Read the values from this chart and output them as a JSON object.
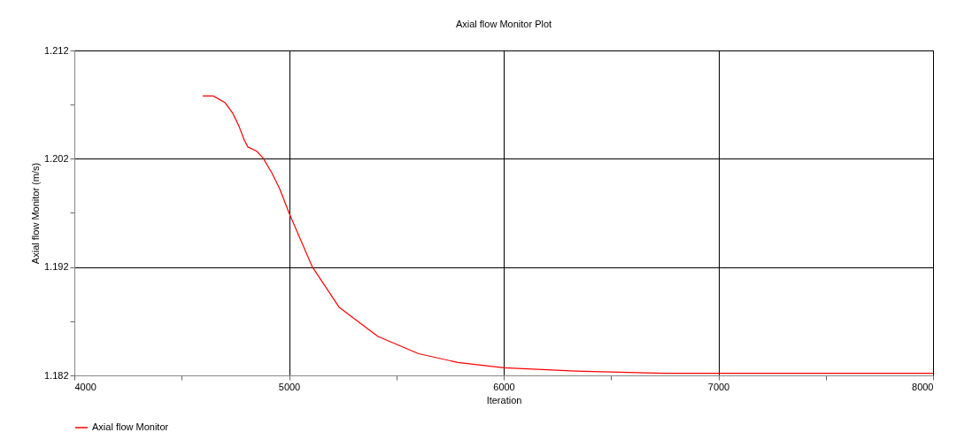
{
  "chart_data": {
    "type": "line",
    "title": "Axial flow Monitor Plot",
    "xlabel": "Iteration",
    "ylabel": "Axial flow Monitor (m/s)",
    "x": [
      4598,
      4647,
      4701,
      4738,
      4767,
      4792,
      4808,
      4849,
      4878,
      4920,
      4957,
      5000,
      5109,
      5233,
      5414,
      5604,
      5786,
      6000,
      6334,
      6746,
      8000
    ],
    "series": [
      {
        "name": "Axial flow Monitor",
        "color": "#ff0000",
        "values": [
          1.2078,
          1.2078,
          1.2072,
          1.2062,
          1.205,
          1.2037,
          1.2031,
          1.2027,
          1.2021,
          1.2007,
          1.1992,
          1.197,
          1.192,
          1.1883,
          1.1856,
          1.184,
          1.1832,
          1.1827,
          1.1824,
          1.1822,
          1.1822
        ]
      }
    ],
    "xlim": [
      4000,
      8000
    ],
    "xticks": [
      4000,
      {
        "value": 4500,
        "label": null
      },
      5000,
      {
        "value": 5500,
        "label": null
      },
      6000,
      {
        "value": 6500,
        "label": null
      },
      7000,
      {
        "value": 7500,
        "label": null
      },
      8000
    ],
    "ylim": [
      1.182,
      1.212
    ],
    "yticks": [
      1.182,
      {
        "value": 1.187,
        "label": null
      },
      1.192,
      {
        "value": 1.197,
        "label": null
      },
      1.202,
      {
        "value": 1.207,
        "label": null
      },
      1.212
    ],
    "grid": true,
    "legend": "bottom",
    "marker": "none",
    "line_style": "solid"
  }
}
